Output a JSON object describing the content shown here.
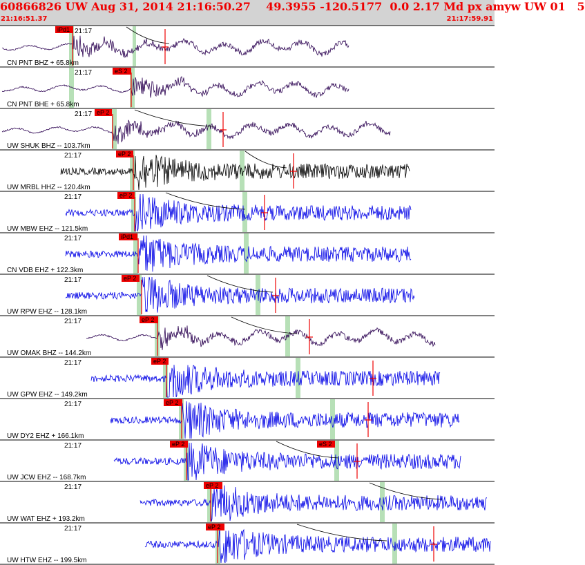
{
  "header": {
    "title": "60866826 UW Aug 31, 2014 21:16:50.27    49.3955 -120.5177  0.0 2.17 Md px amyw UW 01   5",
    "start_time": "21:16:51.37",
    "end_time": "21:17:59.91"
  },
  "colors": {
    "header_bg": "#d3d3d3",
    "title": "#ee0000",
    "trace_dark": "#2a0050",
    "trace_black": "#000000",
    "trace_blue": "#0000e6",
    "pick_box": "#ee0000",
    "pick_window": "#b7e0b7",
    "separator": "#000000"
  },
  "panels": [
    {
      "label": "CN PNT BHZ + 65.8km",
      "tick": "21:17",
      "pick": "iPd1",
      "color": "dark",
      "kind": "long",
      "start": 3,
      "end": 505,
      "onset": 105,
      "pickbox": [
        80,
        106
      ],
      "green": [
        100,
        107
      ],
      "green2": [
        192,
        197
      ],
      "red": 239,
      "curve": [
        183,
        245
      ]
    },
    {
      "label": "CN PNT BHE + 65.8km",
      "tick": "21:17",
      "pick": "eS 2",
      "color": "dark",
      "kind": "long",
      "start": 3,
      "end": 505,
      "onset": 190,
      "pickbox": [
        163,
        190
      ],
      "green": [
        100,
        107
      ],
      "green2": [
        188,
        195
      ],
      "red": null,
      "curve": null
    },
    {
      "label": "UW SHUK BHZ -- 103.7km",
      "tick": "21:17",
      "pick": "eP 2",
      "color": "dark",
      "kind": "long",
      "start": 3,
      "end": 565,
      "onset": 163,
      "pickbox": [
        137,
        162
      ],
      "green": [
        162,
        169
      ],
      "green2": [
        299,
        306
      ],
      "red": 323,
      "curve": [
        195,
        310
      ]
    },
    {
      "label": "UW MRBL HHZ -- 120.4km",
      "tick": "21:17",
      "pick": "eP 2",
      "color": "black",
      "kind": "noisy",
      "start": 88,
      "end": 593,
      "onset": 193,
      "pickbox": [
        168,
        193
      ],
      "green": [
        188,
        195
      ],
      "green2": [
        347,
        354
      ],
      "red": 425,
      "curve": [
        355,
        415
      ]
    },
    {
      "label": "UW MBW EHZ -- 121.5km",
      "tick": "21:17",
      "pick": "eP 2",
      "color": "blue",
      "kind": "noisy",
      "start": 95,
      "end": 595,
      "onset": 195,
      "pickbox": [
        170,
        195
      ],
      "green": [
        190,
        197
      ],
      "green2": [
        351,
        358
      ],
      "red": 383,
      "curve": [
        240,
        355
      ]
    },
    {
      "label": "CN VDB EHZ + 122.3km",
      "tick": "21:17",
      "pick": "iPd1",
      "color": "blue",
      "kind": "noisy",
      "start": 95,
      "end": 595,
      "onset": 200,
      "pickbox": [
        172,
        199
      ],
      "green": [
        193,
        200
      ],
      "green2": [
        353,
        360
      ],
      "red": null,
      "curve": null
    },
    {
      "label": "UW RPW EHZ -- 128.1km",
      "tick": "21:17",
      "pick": "eP 2",
      "color": "blue",
      "kind": "noisy",
      "start": 95,
      "end": 600,
      "onset": 205,
      "pickbox": [
        176,
        202
      ],
      "green": [
        198,
        205
      ],
      "green2": [
        370,
        377
      ],
      "red": 399,
      "curve": [
        300,
        395
      ]
    },
    {
      "label": "UW OMAK BHZ -- 144.2km",
      "tick": "21:17",
      "pick": "eP 2",
      "color": "dark",
      "kind": "long",
      "start": 125,
      "end": 630,
      "onset": 228,
      "pickbox": [
        202,
        229
      ],
      "green": [
        224,
        231
      ],
      "green2": [
        413,
        420
      ],
      "red": 448,
      "curve": [
        335,
        430
      ]
    },
    {
      "label": "UW GPW EHZ -- 149.2km",
      "tick": "21:17",
      "pick": "eP 2",
      "color": "blue",
      "kind": "noisy",
      "start": 132,
      "end": 637,
      "onset": 241,
      "pickbox": [
        219,
        244
      ],
      "green": [
        236,
        243
      ],
      "green2": [
        428,
        435
      ],
      "red": 540,
      "curve": null
    },
    {
      "label": "UW DY2 EHZ + 166.1km",
      "tick": "21:17",
      "pick": "eP 2",
      "color": "blue",
      "kind": "noisy",
      "start": 160,
      "end": 665,
      "onset": 263,
      "pickbox": [
        237,
        264
      ],
      "green": [
        259,
        266
      ],
      "green2": [
        478,
        485
      ],
      "red": 533,
      "curve": null
    },
    {
      "label": "UW JCW EHZ -- 168.7km",
      "tick": "21:17",
      "pick": "eP 2",
      "color": "blue",
      "kind": "noisy",
      "start": 165,
      "end": 667,
      "onset": 270,
      "pickbox": [
        246,
        272
      ],
      "green": [
        266,
        273
      ],
      "green2": [
        484,
        491
      ],
      "red": 517,
      "curve": [
        400,
        490
      ],
      "pick2": "eS 2",
      "pickbox2": [
        459,
        485
      ]
    },
    {
      "label": "UW WAT EHZ + 193.2km",
      "tick": "21:17",
      "pick": "eP 2",
      "color": "blue",
      "kind": "noisy",
      "start": 203,
      "end": 705,
      "onset": 305,
      "pickbox": [
        295,
        322
      ],
      "green": [
        300,
        307
      ],
      "green2": [
        550,
        557
      ],
      "red": null,
      "curve": [
        535,
        640
      ]
    },
    {
      "label": "UW HTW EHZ -- 199.5km",
      "tick": "21:17",
      "pick": "eP 2",
      "color": "blue",
      "kind": "noisy",
      "start": 210,
      "end": 710,
      "onset": 315,
      "pickbox": [
        298,
        325
      ],
      "green": [
        312,
        319
      ],
      "green2": [
        568,
        575
      ],
      "red": 628,
      "curve": [
        430,
        560
      ]
    }
  ]
}
